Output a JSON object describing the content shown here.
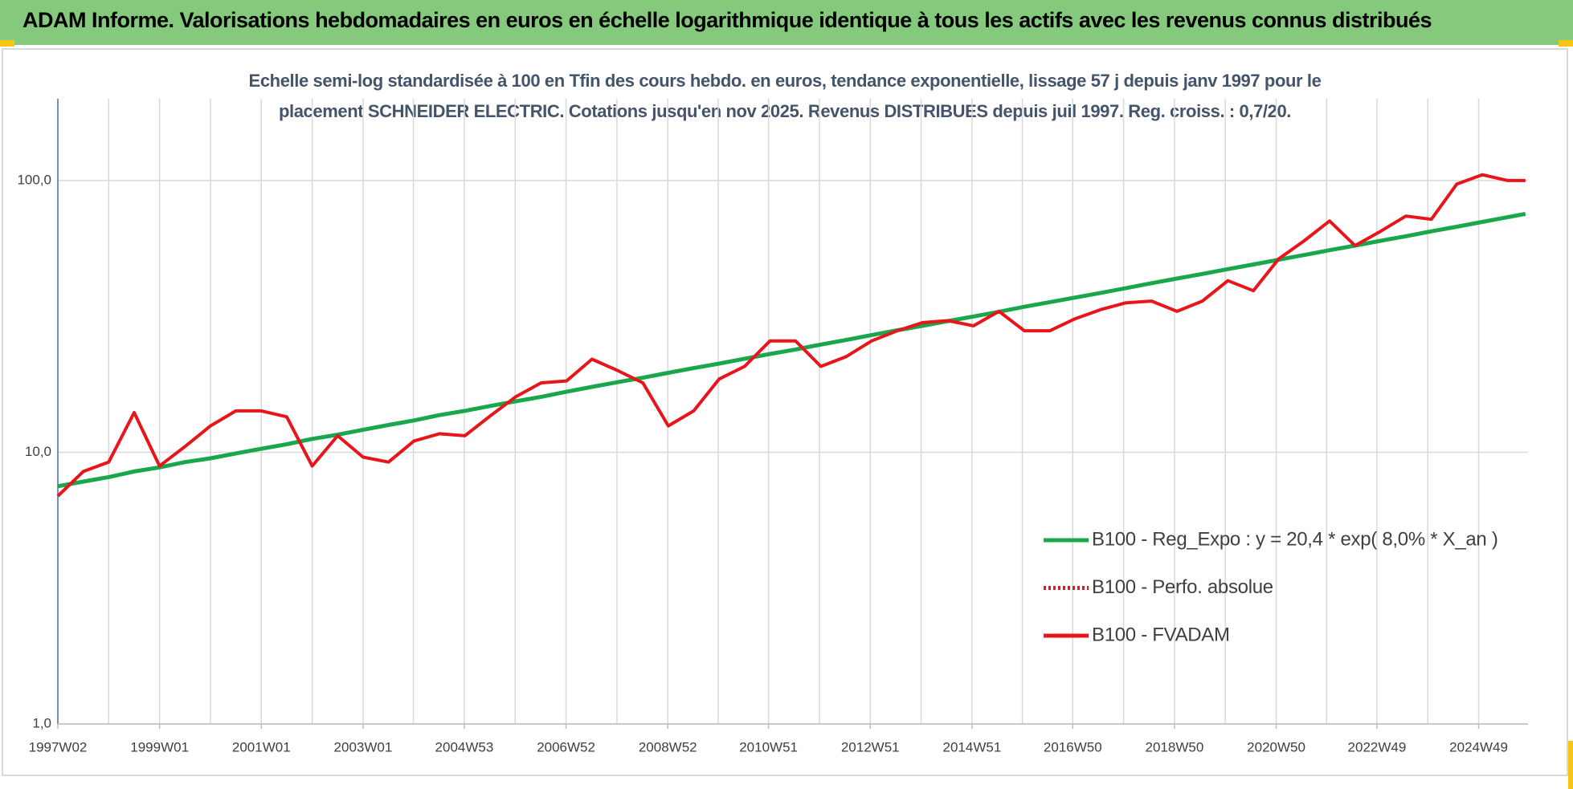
{
  "chart_data": {
    "type": "line",
    "title": "ADAM Informe. Valorisations hebdomadaires en euros en échelle logarithmique identique à tous les actifs avec les revenus connus distribués",
    "subtitle_lines": [
      "Echelle semi-log standardisée à 100 en Tfin des cours hebdo. en euros, tendance exponentielle, lissage 57 j depuis janv 1997 pour le",
      "placement SCHNEIDER ELECTRIC. Cotations jusqu'en nov 2025. Revenus DISTRIBUES depuis juil 1997. Reg. croiss. : 0,7/20."
    ],
    "log_y": true,
    "grid": true,
    "legend": "right",
    "xlim": [
      1997.0,
      2025.9
    ],
    "ylim": [
      1,
      200
    ],
    "yticks": [
      {
        "value": 1,
        "label": "1,0"
      },
      {
        "value": 10,
        "label": "10,0"
      },
      {
        "value": 100,
        "label": "100,0"
      }
    ],
    "xticks": [
      {
        "value": 1997.0,
        "label": "1997W02"
      },
      {
        "value": 1999.0,
        "label": "1999W01"
      },
      {
        "value": 2001.0,
        "label": "2001W01"
      },
      {
        "value": 2003.0,
        "label": "2003W01"
      },
      {
        "value": 2004.99,
        "label": "2004W53"
      },
      {
        "value": 2006.99,
        "label": "2006W52"
      },
      {
        "value": 2008.99,
        "label": "2008W52"
      },
      {
        "value": 2010.97,
        "label": "2010W51"
      },
      {
        "value": 2012.97,
        "label": "2012W51"
      },
      {
        "value": 2014.97,
        "label": "2014W51"
      },
      {
        "value": 2016.95,
        "label": "2016W50"
      },
      {
        "value": 2018.95,
        "label": "2018W50"
      },
      {
        "value": 2020.95,
        "label": "2020W50"
      },
      {
        "value": 2022.93,
        "label": "2022W49"
      },
      {
        "value": 2024.93,
        "label": "2024W49"
      }
    ],
    "xminorticks": [
      1998.0,
      2000.0,
      2002.0,
      2003.99,
      2005.99,
      2007.99,
      2009.98,
      2011.97,
      2013.97,
      2015.96,
      2017.95,
      2019.95,
      2021.94,
      2023.93
    ],
    "x": [
      1997.0,
      1997.5,
      1998.0,
      1998.5,
      1999.0,
      1999.5,
      2000.0,
      2000.5,
      2001.0,
      2001.5,
      2002.0,
      2002.5,
      2003.0,
      2003.5,
      2004.0,
      2004.5,
      2005.0,
      2005.5,
      2006.0,
      2006.5,
      2007.0,
      2007.5,
      2008.0,
      2008.5,
      2009.0,
      2009.5,
      2010.0,
      2010.5,
      2011.0,
      2011.5,
      2012.0,
      2012.5,
      2013.0,
      2013.5,
      2014.0,
      2014.5,
      2015.0,
      2015.5,
      2016.0,
      2016.5,
      2017.0,
      2017.5,
      2018.0,
      2018.5,
      2019.0,
      2019.5,
      2020.0,
      2020.5,
      2021.0,
      2021.5,
      2022.0,
      2022.5,
      2023.0,
      2023.5,
      2024.0,
      2024.5,
      2025.0,
      2025.5,
      2025.85
    ],
    "series": [
      {
        "name": "B100 - Reg_Expo : y = 20,4 * exp( 8,0% *  X_an )",
        "color": "#1aa64a",
        "style": "solid",
        "values": [
          7.5,
          7.8,
          8.1,
          8.5,
          8.8,
          9.2,
          9.5,
          9.9,
          10.3,
          10.7,
          11.2,
          11.6,
          12.1,
          12.6,
          13.1,
          13.7,
          14.2,
          14.8,
          15.4,
          16.0,
          16.7,
          17.4,
          18.1,
          18.8,
          19.6,
          20.4,
          21.2,
          22.1,
          23.0,
          23.9,
          24.9,
          25.9,
          27.0,
          28.1,
          29.2,
          30.4,
          31.6,
          32.9,
          34.3,
          35.7,
          37.1,
          38.6,
          40.2,
          41.9,
          43.6,
          45.3,
          47.2,
          49.1,
          51.1,
          53.2,
          55.4,
          57.6,
          60.0,
          62.4,
          65.0,
          67.6,
          70.4,
          73.3,
          75.4
        ]
      },
      {
        "name": "B100 - Perfo. absolue",
        "color": "#e8151b",
        "style": "dotted",
        "values": [
          null,
          null,
          null,
          null,
          null,
          null,
          null,
          null,
          null,
          null,
          null,
          null,
          null,
          null,
          null,
          null,
          null,
          null,
          null,
          null,
          null,
          null,
          null,
          null,
          null,
          null,
          null,
          null,
          null,
          null,
          null,
          null,
          null,
          null,
          null,
          null,
          null,
          null,
          null,
          null,
          null,
          null,
          null,
          null,
          null,
          null,
          null,
          null,
          null,
          null,
          null,
          null,
          null,
          null,
          null,
          null,
          null,
          null,
          null
        ]
      },
      {
        "name": "B100 - FVADAM",
        "color": "#e8151b",
        "style": "solid",
        "values": [
          6.9,
          8.5,
          9.2,
          14,
          8.9,
          10.5,
          12.5,
          14.2,
          14.2,
          13.5,
          8.9,
          11.5,
          9.6,
          9.2,
          11,
          11.7,
          11.5,
          13.6,
          16,
          18,
          18.3,
          22,
          20,
          18,
          12.5,
          14.2,
          18.6,
          20.7,
          25.7,
          25.7,
          20.7,
          22.5,
          25.7,
          28,
          30,
          30.5,
          29.2,
          33,
          28,
          28,
          31,
          33.5,
          35.5,
          36,
          33,
          36,
          42.8,
          39.3,
          51.5,
          60,
          71,
          57.6,
          65,
          74,
          72,
          97,
          105,
          100,
          100
        ]
      }
    ]
  }
}
